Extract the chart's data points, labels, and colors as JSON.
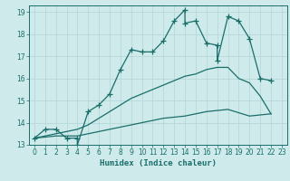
{
  "xlabel": "Humidex (Indice chaleur)",
  "background_color": "#ceeaeb",
  "grid_color": "#b8d8da",
  "line_color": "#1a6e6a",
  "xlim": [
    -0.5,
    23.5
  ],
  "ylim": [
    13.0,
    19.3
  ],
  "xticks": [
    0,
    1,
    2,
    3,
    4,
    5,
    6,
    7,
    8,
    9,
    10,
    11,
    12,
    13,
    14,
    15,
    16,
    17,
    18,
    19,
    20,
    21,
    22,
    23
  ],
  "yticks": [
    13,
    14,
    15,
    16,
    17,
    18,
    19
  ],
  "line1_x": [
    0,
    1,
    2,
    3,
    4,
    4,
    5,
    6,
    7,
    8,
    9,
    10,
    11,
    12,
    13,
    14,
    14,
    15,
    16,
    17,
    17,
    18,
    19,
    20,
    21,
    22
  ],
  "line1_y": [
    13.3,
    13.7,
    13.7,
    13.3,
    13.3,
    13.0,
    14.5,
    14.8,
    15.3,
    16.4,
    17.3,
    17.2,
    17.2,
    17.7,
    18.6,
    19.1,
    18.5,
    18.6,
    17.6,
    17.5,
    16.8,
    18.8,
    18.6,
    17.8,
    16.0,
    15.9
  ],
  "line2_x": [
    0,
    1,
    2,
    3,
    4,
    5,
    6,
    7,
    8,
    9,
    10,
    11,
    12,
    13,
    14,
    15,
    16,
    17,
    18,
    19,
    20,
    21,
    22
  ],
  "line2_y": [
    13.3,
    13.4,
    13.5,
    13.6,
    13.7,
    13.9,
    14.2,
    14.5,
    14.8,
    15.1,
    15.3,
    15.5,
    15.7,
    15.9,
    16.1,
    16.2,
    16.4,
    16.5,
    16.5,
    16.0,
    15.8,
    15.2,
    14.4
  ],
  "line3_x": [
    0,
    2,
    4,
    6,
    8,
    10,
    12,
    14,
    16,
    18,
    20,
    22
  ],
  "line3_y": [
    13.3,
    13.4,
    13.4,
    13.6,
    13.8,
    14.0,
    14.2,
    14.3,
    14.5,
    14.6,
    14.3,
    14.4
  ]
}
